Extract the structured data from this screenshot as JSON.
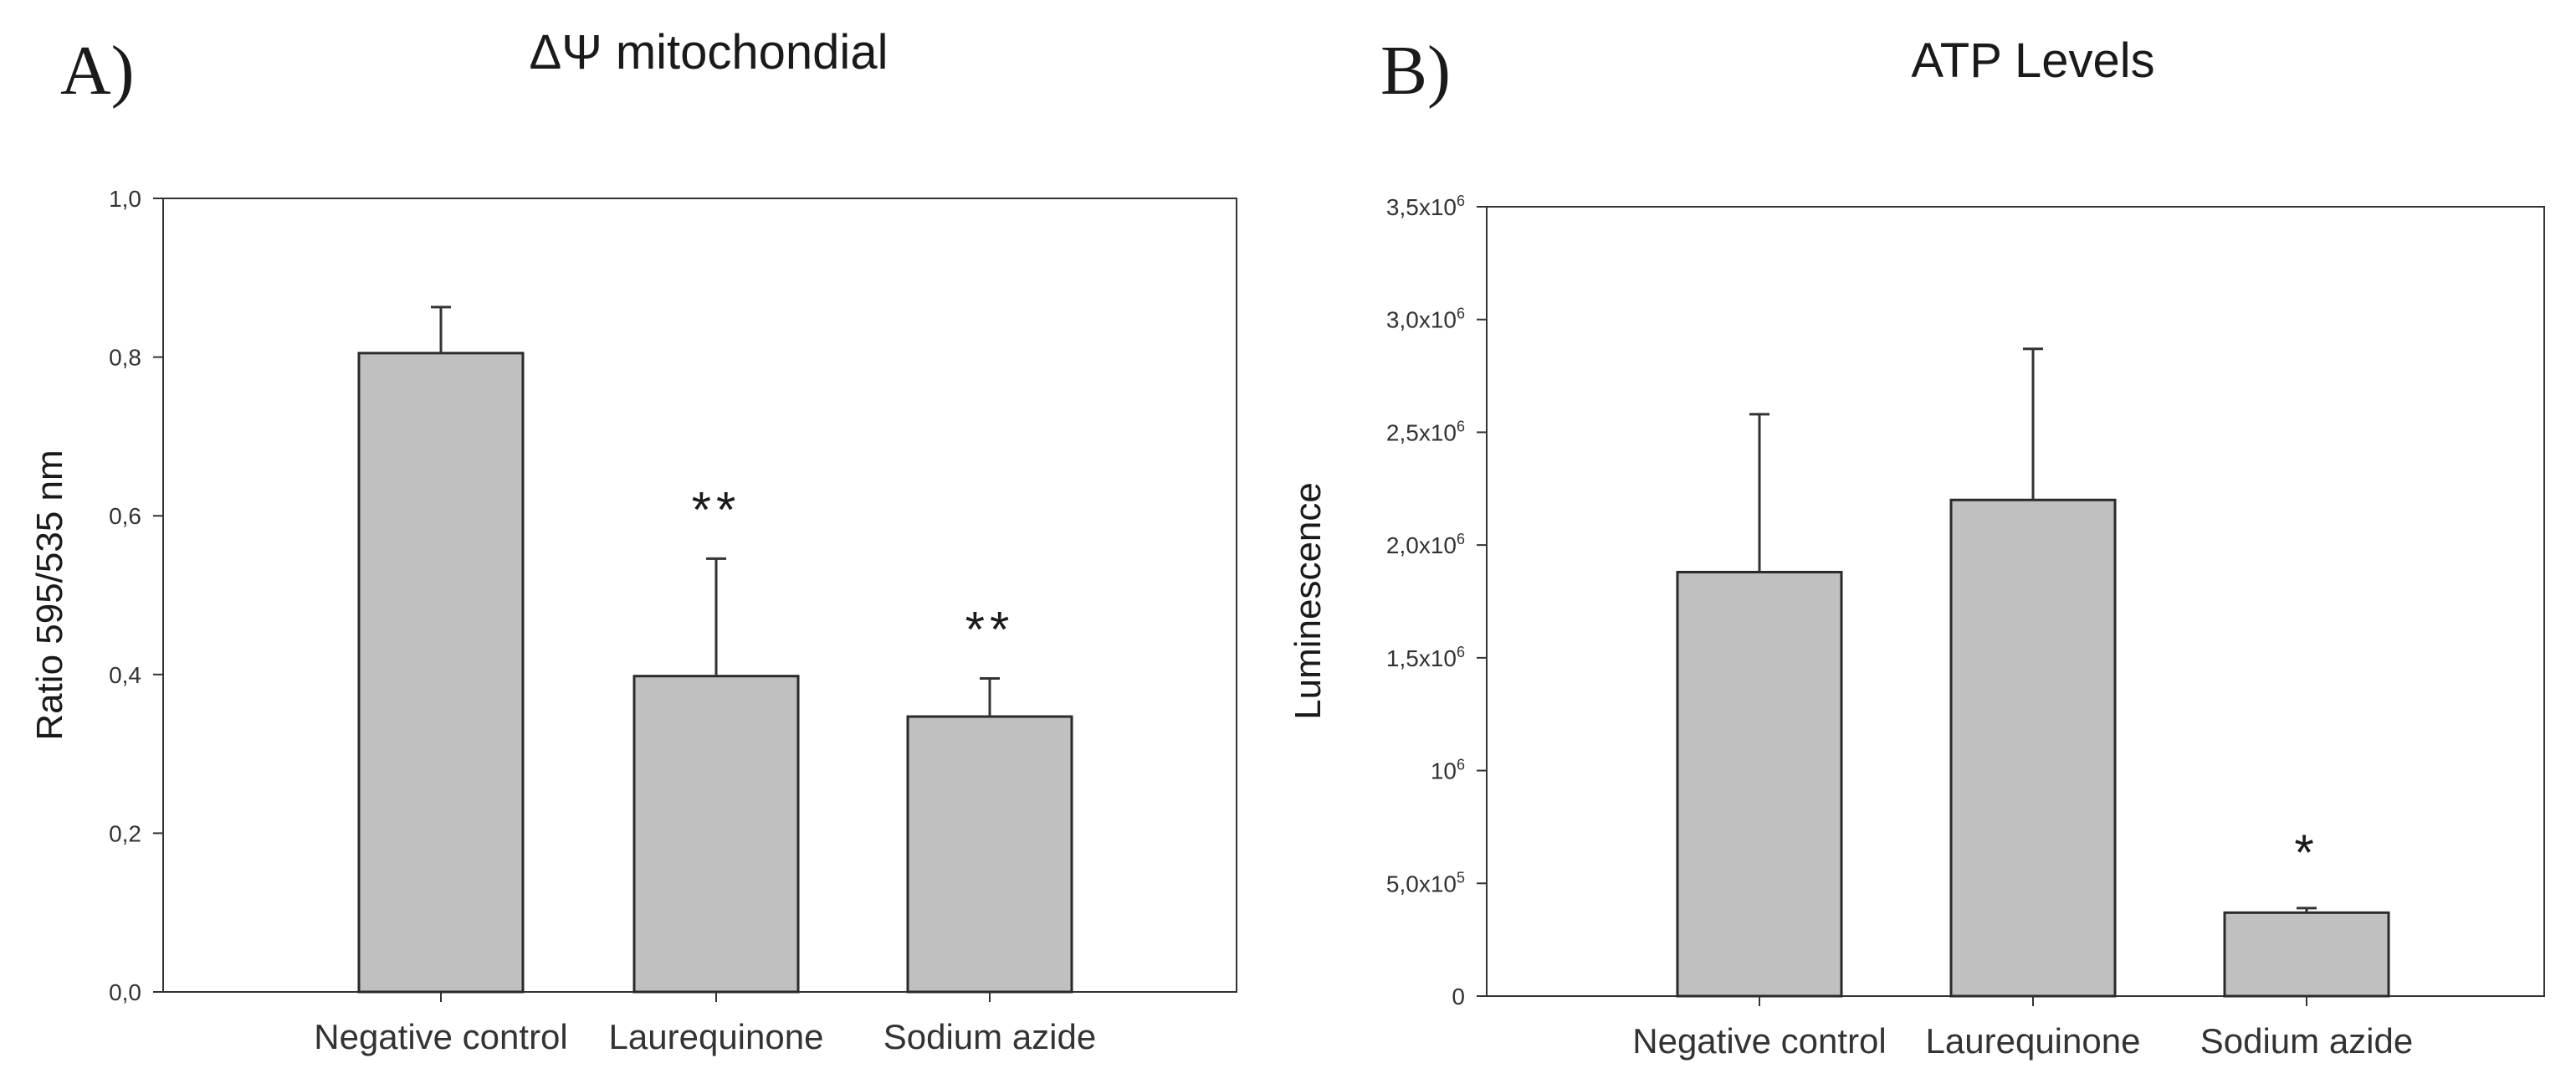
{
  "figure": {
    "panels": [
      {
        "letter": "A)"
      },
      {
        "letter": "B)"
      }
    ]
  },
  "chart_data": [
    {
      "type": "bar",
      "title": "ΔΨ mitochondial",
      "xlabel": "",
      "ylabel": "Ratio 595/535 nm",
      "ylim": [
        0,
        1.0
      ],
      "yticks": [
        0,
        0.2,
        0.4,
        0.6,
        0.8,
        1.0
      ],
      "ytick_labels": [
        "0,0",
        "0,2",
        "0,4",
        "0,6",
        "0,8",
        "1,0"
      ],
      "categories": [
        "Negative control",
        "Laurequinone",
        "Sodium azide"
      ],
      "values": [
        0.805,
        0.398,
        0.347
      ],
      "errors": [
        0.058,
        0.148,
        0.048
      ],
      "annotations": [
        "",
        "**",
        "**"
      ],
      "bar_color": "#c0c0c0",
      "grid": false
    },
    {
      "type": "bar",
      "title": "ATP Levels",
      "xlabel": "",
      "ylabel": "Luminescence",
      "ylim": [
        0,
        3500000
      ],
      "yticks": [
        0,
        500000,
        1000000,
        1500000,
        2000000,
        2500000,
        3000000,
        3500000
      ],
      "ytick_labels": [
        {
          "base": "0",
          "exp": ""
        },
        {
          "base": "5,0x10",
          "exp": "5"
        },
        {
          "base": "10",
          "exp": "6"
        },
        {
          "base": "1,5x10",
          "exp": "6"
        },
        {
          "base": "2,0x10",
          "exp": "6"
        },
        {
          "base": "2,5x10",
          "exp": "6"
        },
        {
          "base": "3,0x10",
          "exp": "6"
        },
        {
          "base": "3,5x10",
          "exp": "6"
        }
      ],
      "categories": [
        "Negative control",
        "Laurequinone",
        "Sodium azide"
      ],
      "values": [
        1880000,
        2200000,
        370000
      ],
      "errors": [
        700000,
        670000,
        20000
      ],
      "annotations": [
        "",
        "",
        "*"
      ],
      "bar_color": "#c0c0c0",
      "grid": false
    }
  ]
}
